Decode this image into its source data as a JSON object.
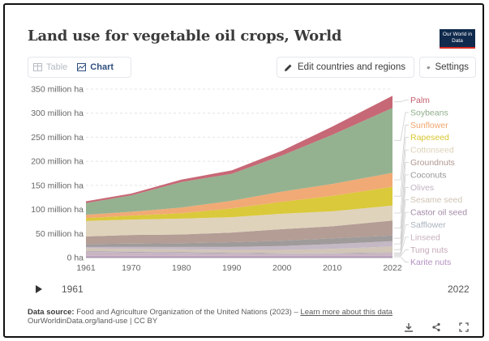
{
  "header": {
    "title": "Land use for vegetable oil crops, World",
    "logo": "Our World in Data"
  },
  "tabs": [
    {
      "label": "Table",
      "icon": "table-icon",
      "active": false
    },
    {
      "label": "Chart",
      "icon": "chart-icon",
      "active": true
    }
  ],
  "toolbar": {
    "edit_label": "Edit countries and regions",
    "edit_icon": "pencil-icon",
    "settings_label": "Settings",
    "settings_icon": "gear-icon"
  },
  "timeline": {
    "start": "1961",
    "end": "2022",
    "play_icon": "play-icon"
  },
  "footer": {
    "source_label": "Data source:",
    "source_text": "Food and Agriculture Organization of the United Nations (2023) – ",
    "learn_more": "Learn more about this data",
    "url_text": "OurWorldinData.org/land-use | CC BY",
    "icons": [
      "download-icon",
      "share-icon",
      "fullscreen-icon"
    ]
  },
  "colors": {
    "Palm": "#c4606f",
    "Soybeans": "#8fae8a",
    "Sunflower": "#f0a56e",
    "Rapeseed": "#d8c62f",
    "Cottonseed": "#ddd1b8",
    "Groundnuts": "#b0988f",
    "Coconuts": "#9a9696",
    "Olives": "#c2b4c2",
    "Sesame seed": "#cfc3b3",
    "Castor oil seed": "#a48aa8",
    "Safflower": "#aab3bf",
    "Linseed": "#c7b0be",
    "Tung nuts": "#c7a9b9",
    "Karite nuts": "#b390c1"
  },
  "chart_data": {
    "type": "area",
    "stacked": true,
    "x_ticks": [
      "1961",
      "1970",
      "1980",
      "1990",
      "2000",
      "2010",
      "2022"
    ],
    "y_ticks": [
      "0 ha",
      "50 million ha",
      "100 million ha",
      "150 million ha",
      "200 million ha",
      "250 million ha",
      "300 million ha",
      "350 million ha"
    ],
    "ylim": [
      0,
      350
    ],
    "unit": "million ha",
    "x": [
      1961,
      1970,
      1980,
      1990,
      2000,
      2010,
      2022
    ],
    "series": [
      {
        "name": "Karite nuts",
        "values": [
          3,
          3,
          3,
          3,
          3,
          3,
          3
        ]
      },
      {
        "name": "Tung nuts",
        "values": [
          1,
          1,
          1,
          1,
          1,
          1,
          1
        ]
      },
      {
        "name": "Linseed",
        "values": [
          7,
          6,
          5,
          4,
          3,
          3,
          4
        ]
      },
      {
        "name": "Safflower",
        "values": [
          1,
          1,
          1,
          1,
          1,
          1,
          1
        ]
      },
      {
        "name": "Castor oil seed",
        "values": [
          1,
          1,
          1,
          1,
          1,
          1,
          1
        ]
      },
      {
        "name": "Sesame seed",
        "values": [
          6,
          6,
          6,
          6,
          7,
          9,
          13
        ]
      },
      {
        "name": "Olives",
        "values": [
          3,
          4,
          5,
          6,
          8,
          10,
          11
        ]
      },
      {
        "name": "Coconuts",
        "values": [
          6,
          7,
          8,
          10,
          11,
          12,
          12
        ]
      },
      {
        "name": "Groundnuts",
        "values": [
          16,
          18,
          18,
          20,
          24,
          25,
          31
        ]
      },
      {
        "name": "Cottonseed",
        "values": [
          32,
          32,
          33,
          32,
          32,
          31,
          31
        ]
      },
      {
        "name": "Rapeseed",
        "values": [
          6,
          8,
          11,
          18,
          25,
          32,
          39
        ]
      },
      {
        "name": "Sunflower",
        "values": [
          7,
          8,
          12,
          16,
          21,
          25,
          29
        ]
      },
      {
        "name": "Soybeans",
        "values": [
          24,
          34,
          53,
          56,
          75,
          102,
          135
        ]
      },
      {
        "name": "Palm",
        "values": [
          4,
          4,
          5,
          7,
          10,
          17,
          25
        ]
      }
    ]
  }
}
